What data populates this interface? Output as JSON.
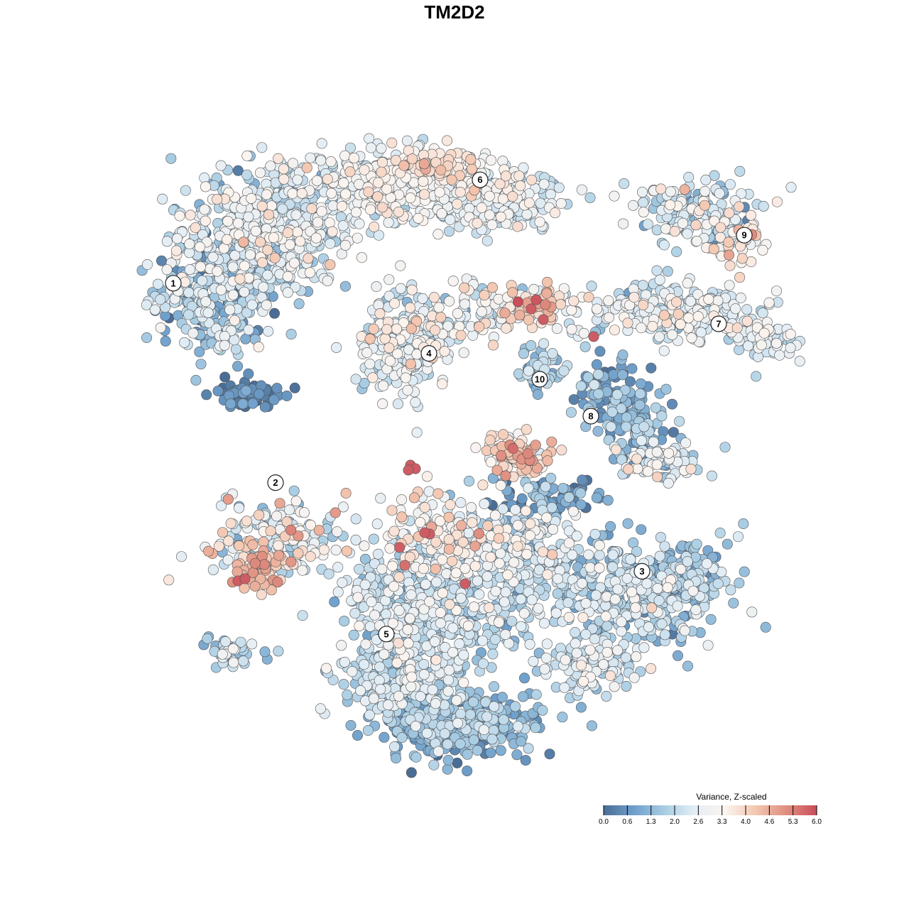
{
  "chart_data": {
    "type": "scatter",
    "title": "TM2D2",
    "xlabel": "",
    "ylabel": "",
    "grid": false,
    "legend": {
      "title": "Variance, Z-scaled",
      "placement": "bottom-right",
      "ticks": [
        "0.0",
        "0.6",
        "1.3",
        "2.0",
        "2.6",
        "3.3",
        "4.0",
        "4.6",
        "5.3",
        "6.0"
      ],
      "range": [
        0,
        6
      ],
      "colors": [
        "#4a6d95",
        "#6fa0cc",
        "#a9cde3",
        "#e4eef5",
        "#fbf4ef",
        "#f3c6b0",
        "#e08f80",
        "#c94d5b"
      ]
    },
    "clusters": [
      {
        "label": "1",
        "x": 0.17,
        "y": 0.56
      },
      {
        "label": "2",
        "x": 0.29,
        "y": 0.02
      },
      {
        "label": "3",
        "x": 0.72,
        "y": -0.22
      },
      {
        "label": "4",
        "x": 0.47,
        "y": 0.37
      },
      {
        "label": "5",
        "x": 0.42,
        "y": -0.39
      },
      {
        "label": "6",
        "x": 0.53,
        "y": 0.84
      },
      {
        "label": "7",
        "x": 0.81,
        "y": 0.45
      },
      {
        "label": "8",
        "x": 0.66,
        "y": 0.2
      },
      {
        "label": "9",
        "x": 0.84,
        "y": 0.69
      },
      {
        "label": "10",
        "x": 0.6,
        "y": 0.3
      }
    ]
  }
}
